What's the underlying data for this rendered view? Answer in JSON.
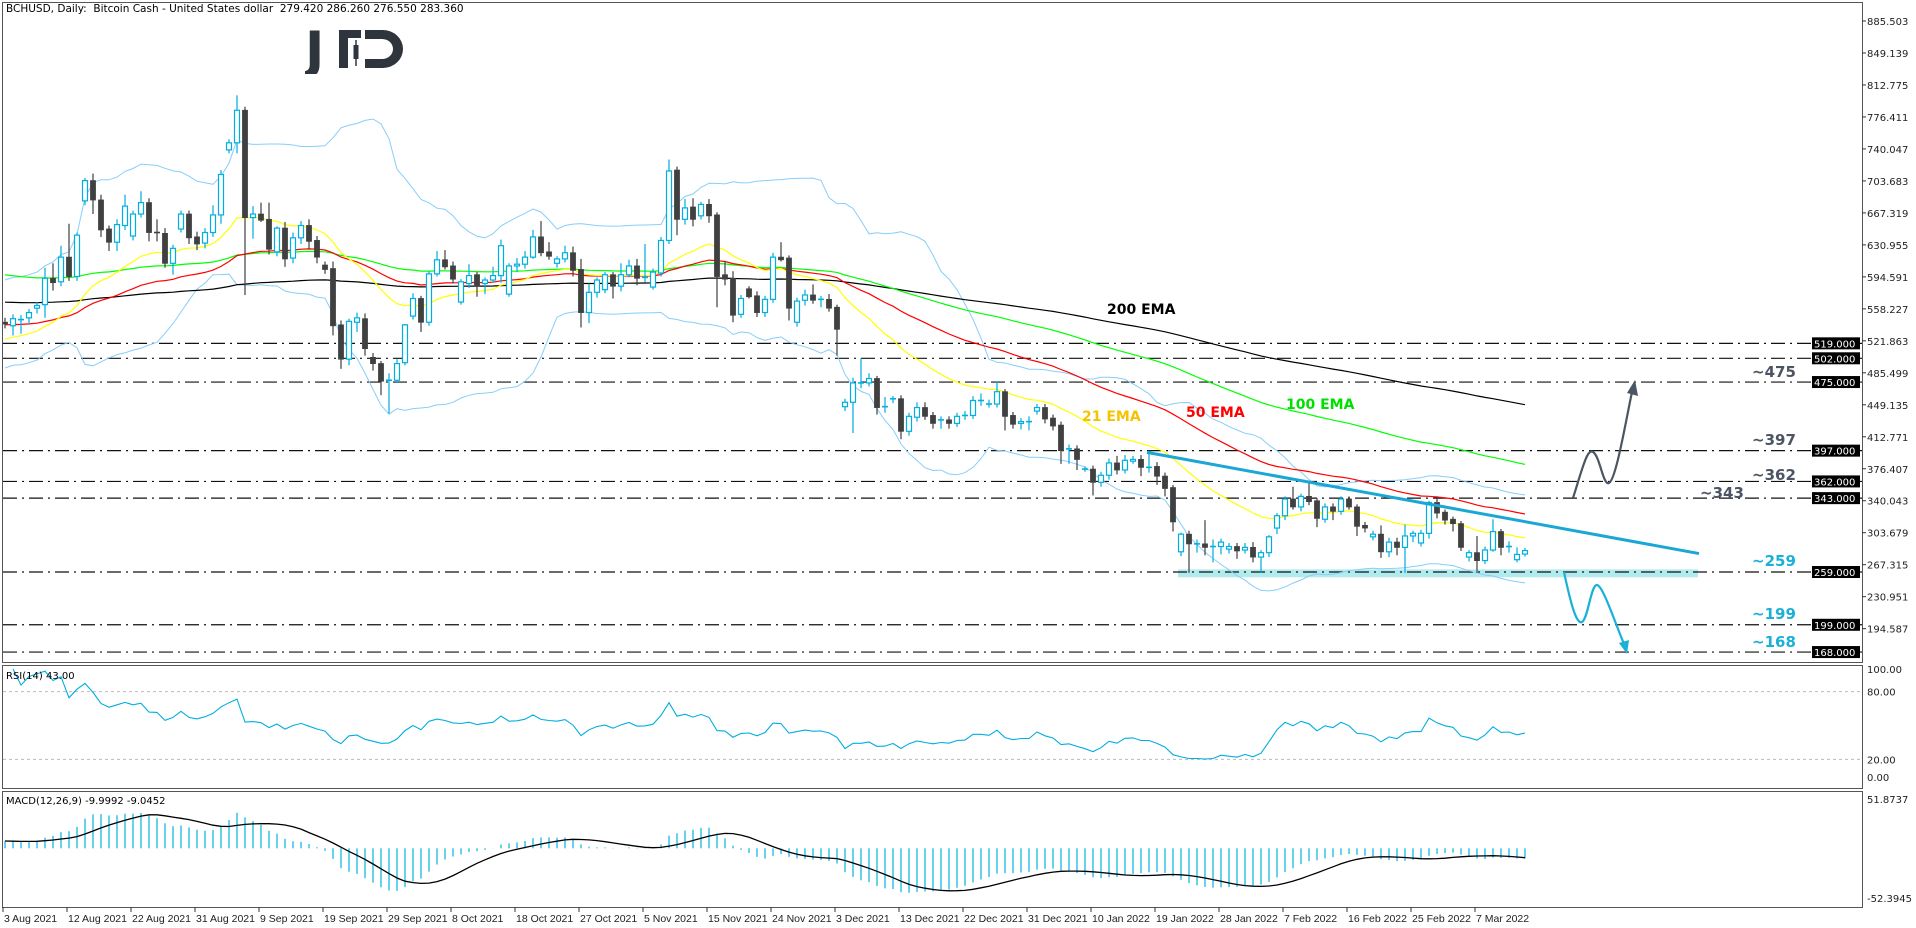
{
  "header": {
    "symbol_line": "BCHUSD, Daily:  Bitcoin Cash - United States dollar  279.420 286.260 276.550 283.360"
  },
  "logo": {
    "text": "JFD",
    "color": "#2f353d"
  },
  "annotations": {
    "ema_labels": [
      {
        "text": "200 EMA",
        "color": "#000000"
      },
      {
        "text": "21 EMA",
        "color": "#f5c400"
      },
      {
        "text": "50 EMA",
        "color": "#ff0000"
      },
      {
        "text": "100 EMA",
        "color": "#00e000"
      }
    ],
    "level_labels": [
      {
        "text": "~475",
        "color": "#4b5563"
      },
      {
        "text": "~397",
        "color": "#4b5563"
      },
      {
        "text": "~362",
        "color": "#4b5563"
      },
      {
        "text": "~343",
        "color": "#4b5563"
      },
      {
        "text": "~259",
        "color": "#1ab0d8"
      },
      {
        "text": "~199",
        "color": "#1ab0d8"
      },
      {
        "text": "~168",
        "color": "#1ab0d8"
      }
    ]
  },
  "rsi_panel": {
    "label": "RSI(14) 43.00",
    "axis": [
      "100.00",
      "80.00",
      "20.00",
      "0.00"
    ],
    "levels": [
      80,
      20
    ]
  },
  "macd_panel": {
    "label": "MACD(12,26,9) -9.9992 -9.0452",
    "axis": [
      "51.8737",
      "-52.3945"
    ]
  },
  "chart_data": {
    "type": "candlestick",
    "symbol": "BCHUSD",
    "timeframe": "Daily",
    "last_ohlc": {
      "open": 279.42,
      "high": 286.26,
      "low": 276.55,
      "close": 283.36
    },
    "price_axis": {
      "ticks": [
        "885.503",
        "849.139",
        "812.775",
        "776.411",
        "740.047",
        "703.683",
        "667.319",
        "630.955",
        "594.591",
        "558.227",
        "521.863",
        "485.499",
        "449.135",
        "412.771",
        "376.407",
        "340.043",
        "303.679",
        "267.315",
        "230.951",
        "194.587"
      ],
      "range": [
        168,
        885.503
      ]
    },
    "time_axis": {
      "labels": [
        "3 Aug 2021",
        "12 Aug 2021",
        "22 Aug 2021",
        "31 Aug 2021",
        "9 Sep 2021",
        "19 Sep 2021",
        "29 Sep 2021",
        "8 Oct 2021",
        "18 Oct 2021",
        "27 Oct 2021",
        "5 Nov 2021",
        "15 Nov 2021",
        "24 Nov 2021",
        "3 Dec 2021",
        "13 Dec 2021",
        "22 Dec 2021",
        "31 Dec 2021",
        "10 Jan 2022",
        "19 Jan 2022",
        "28 Jan 2022",
        "7 Feb 2022",
        "16 Feb 2022",
        "25 Feb 2022",
        "7 Mar 2022"
      ],
      "bars_per_label": 8
    },
    "colors": {
      "bull": "#00aee0",
      "bear": "#404040",
      "bollinger": "#87cefa",
      "ema21": "#ffff00",
      "ema50": "#ff0000",
      "ema100": "#00ff00",
      "ema200": "#000000",
      "trendline": "#1aa7d6",
      "support_zone": "#b2ebee",
      "macd_hist": "#00b4e0",
      "macd_signal": "#000000",
      "rsi": "#00aee0",
      "arrow_up": "#4b5563",
      "arrow_down": "#1ab0d8"
    },
    "indicators": {
      "ema_periods": [
        21,
        50,
        100,
        200
      ],
      "ema_initial_values": {
        "21": 522,
        "50": 540,
        "100": 598,
        "200": 566
      },
      "bollinger": {
        "period": 20,
        "deviation": 2
      },
      "rsi_period": 14,
      "macd": {
        "fast": 12,
        "slow": 26,
        "signal": 9
      }
    },
    "levels": [
      {
        "value": 519,
        "tag": "519.000"
      },
      {
        "value": 502,
        "tag": "502.000"
      },
      {
        "value": 475,
        "tag": "475.000"
      },
      {
        "value": 397,
        "tag": "397.000"
      },
      {
        "value": 362,
        "tag": "362.000"
      },
      {
        "value": 343,
        "tag": "343.000"
      },
      {
        "value": 259,
        "tag": "259.000"
      },
      {
        "value": 199,
        "tag": "199.000"
      },
      {
        "value": 168,
        "tag": "168.000"
      }
    ],
    "support_zone": {
      "from": 253,
      "to": 262
    },
    "trendline": {
      "start_price": 395,
      "end_price": 280
    },
    "candles": [
      [
        543,
        548,
        536,
        541
      ],
      [
        539,
        552,
        528,
        547
      ],
      [
        546,
        551,
        530,
        546
      ],
      [
        548,
        558,
        541,
        554
      ],
      [
        559,
        566,
        553,
        562
      ],
      [
        563,
        605,
        548,
        593
      ],
      [
        593,
        610,
        579,
        588
      ],
      [
        589,
        630,
        584,
        617
      ],
      [
        617,
        655,
        590,
        595
      ],
      [
        595,
        645,
        590,
        642
      ],
      [
        681,
        707,
        676,
        704
      ],
      [
        704,
        712,
        666,
        682
      ],
      [
        682,
        688,
        640,
        648
      ],
      [
        649,
        653,
        624,
        634
      ],
      [
        634,
        660,
        624,
        654
      ],
      [
        653,
        688,
        648,
        675
      ],
      [
        641,
        670,
        636,
        666
      ],
      [
        666,
        692,
        662,
        679
      ],
      [
        679,
        684,
        635,
        645
      ],
      [
        645,
        660,
        635,
        644
      ],
      [
        644,
        650,
        605,
        610
      ],
      [
        610,
        631,
        597,
        627
      ],
      [
        649,
        670,
        645,
        666
      ],
      [
        666,
        670,
        632,
        639
      ],
      [
        640,
        646,
        625,
        632
      ],
      [
        633,
        650,
        627,
        645
      ],
      [
        645,
        676,
        640,
        665
      ],
      [
        665,
        716,
        655,
        711
      ],
      [
        739,
        751,
        735,
        747
      ],
      [
        747,
        801,
        735,
        784
      ],
      [
        784,
        788,
        574,
        662
      ],
      [
        662,
        675,
        638,
        666
      ],
      [
        666,
        679,
        657,
        659
      ],
      [
        660,
        679,
        620,
        626
      ],
      [
        623,
        652,
        618,
        650
      ],
      [
        650,
        657,
        606,
        615
      ],
      [
        616,
        645,
        610,
        639
      ],
      [
        639,
        658,
        632,
        653
      ],
      [
        653,
        660,
        626,
        635
      ],
      [
        636,
        641,
        610,
        617
      ],
      [
        608,
        612,
        598,
        603
      ],
      [
        604,
        612,
        528,
        539
      ],
      [
        540,
        545,
        490,
        501
      ],
      [
        501,
        547,
        494,
        544
      ],
      [
        543,
        554,
        532,
        548
      ],
      [
        547,
        553,
        505,
        513
      ],
      [
        503,
        508,
        488,
        496
      ],
      [
        496,
        499,
        460,
        476
      ],
      [
        477,
        485,
        439,
        477
      ],
      [
        477,
        501,
        474,
        496
      ],
      [
        497,
        541,
        494,
        540
      ],
      [
        550,
        576,
        546,
        570
      ],
      [
        570,
        573,
        532,
        543
      ],
      [
        543,
        601,
        539,
        598
      ],
      [
        598,
        624,
        595,
        614
      ],
      [
        614,
        625,
        603,
        606
      ],
      [
        607,
        612,
        587,
        592
      ],
      [
        566,
        592,
        563,
        589
      ],
      [
        587,
        609,
        582,
        596
      ],
      [
        597,
        600,
        572,
        584
      ],
      [
        587,
        594,
        575,
        591
      ],
      [
        591,
        606,
        588,
        596
      ],
      [
        596,
        637,
        588,
        630
      ],
      [
        575,
        610,
        572,
        607
      ],
      [
        607,
        616,
        600,
        609
      ],
      [
        609,
        624,
        604,
        617
      ],
      [
        617,
        648,
        615,
        640
      ],
      [
        640,
        658,
        618,
        622
      ],
      [
        623,
        634,
        614,
        618
      ],
      [
        610,
        618,
        605,
        615
      ],
      [
        615,
        630,
        611,
        622
      ],
      [
        622,
        629,
        595,
        602
      ],
      [
        603,
        615,
        537,
        554
      ],
      [
        554,
        587,
        542,
        577
      ],
      [
        577,
        594,
        571,
        591
      ],
      [
        580,
        600,
        576,
        597
      ],
      [
        597,
        600,
        570,
        584
      ],
      [
        584,
        610,
        578,
        597
      ],
      [
        597,
        614,
        594,
        607
      ],
      [
        607,
        615,
        585,
        593
      ],
      [
        594,
        632,
        588,
        594
      ],
      [
        583,
        604,
        580,
        600
      ],
      [
        599,
        640,
        595,
        636
      ],
      [
        636,
        728,
        632,
        715
      ],
      [
        716,
        720,
        642,
        660
      ],
      [
        660,
        683,
        654,
        673
      ],
      [
        674,
        684,
        652,
        660
      ],
      [
        664,
        680,
        660,
        677
      ],
      [
        677,
        683,
        656,
        664
      ],
      [
        665,
        668,
        560,
        595
      ],
      [
        597,
        612,
        585,
        592
      ],
      [
        593,
        601,
        543,
        551
      ],
      [
        552,
        574,
        548,
        570
      ],
      [
        581,
        584,
        570,
        572
      ],
      [
        573,
        578,
        549,
        554
      ],
      [
        554,
        573,
        549,
        569
      ],
      [
        569,
        622,
        565,
        617
      ],
      [
        617,
        634,
        612,
        614
      ],
      [
        616,
        619,
        545,
        559
      ],
      [
        543,
        571,
        538,
        567
      ],
      [
        568,
        580,
        562,
        574
      ],
      [
        574,
        586,
        564,
        568
      ],
      [
        569,
        573,
        560,
        569
      ],
      [
        569,
        575,
        555,
        559
      ],
      [
        560,
        563,
        505,
        535
      ],
      [
        447,
        456,
        442,
        452
      ],
      [
        452,
        480,
        417,
        474
      ],
      [
        474,
        502,
        468,
        474
      ],
      [
        474,
        485,
        470,
        479
      ],
      [
        479,
        482,
        438,
        446
      ],
      [
        447,
        458,
        440,
        447
      ],
      [
        455,
        459,
        451,
        456
      ],
      [
        456,
        460,
        410,
        419
      ],
      [
        419,
        440,
        414,
        436
      ],
      [
        435,
        452,
        430,
        446
      ],
      [
        446,
        452,
        432,
        436
      ],
      [
        437,
        441,
        422,
        428
      ],
      [
        432,
        436,
        422,
        432
      ],
      [
        432,
        436,
        422,
        428
      ],
      [
        428,
        440,
        424,
        436
      ],
      [
        436,
        442,
        432,
        437
      ],
      [
        437,
        459,
        433,
        454
      ],
      [
        454,
        462,
        448,
        454
      ],
      [
        450,
        455,
        446,
        450
      ],
      [
        450,
        476,
        446,
        464
      ],
      [
        464,
        467,
        420,
        436
      ],
      [
        437,
        441,
        422,
        427
      ],
      [
        428,
        434,
        421,
        430
      ],
      [
        430,
        436,
        420,
        430
      ],
      [
        442,
        450,
        438,
        446
      ],
      [
        446,
        450,
        428,
        433
      ],
      [
        434,
        438,
        420,
        425
      ],
      [
        426,
        430,
        382,
        397
      ],
      [
        399,
        404,
        382,
        399
      ],
      [
        399,
        403,
        375,
        387
      ],
      [
        376,
        379,
        373,
        376
      ],
      [
        376,
        380,
        346,
        361
      ],
      [
        361,
        373,
        356,
        369
      ],
      [
        369,
        388,
        364,
        383
      ],
      [
        383,
        391,
        370,
        375
      ],
      [
        375,
        392,
        371,
        386
      ],
      [
        385,
        391,
        382,
        387
      ],
      [
        387,
        392,
        368,
        378
      ],
      [
        378,
        397,
        372,
        378
      ],
      [
        379,
        384,
        358,
        368
      ],
      [
        368,
        372,
        345,
        354
      ],
      [
        355,
        358,
        305,
        316
      ],
      [
        282,
        304,
        277,
        302
      ],
      [
        302,
        306,
        258,
        291
      ],
      [
        291,
        296,
        281,
        291
      ],
      [
        291,
        318,
        278,
        287
      ],
      [
        288,
        296,
        270,
        288
      ],
      [
        288,
        297,
        279,
        293
      ],
      [
        285,
        292,
        280,
        288
      ],
      [
        288,
        292,
        274,
        283
      ],
      [
        284,
        292,
        280,
        287
      ],
      [
        287,
        293,
        270,
        276
      ],
      [
        276,
        284,
        258,
        281
      ],
      [
        281,
        301,
        276,
        299
      ],
      [
        309,
        326,
        302,
        323
      ],
      [
        323,
        345,
        318,
        342
      ],
      [
        342,
        356,
        330,
        333
      ],
      [
        333,
        348,
        328,
        345
      ],
      [
        345,
        363,
        335,
        339
      ],
      [
        340,
        343,
        310,
        320
      ],
      [
        319,
        337,
        315,
        333
      ],
      [
        333,
        337,
        318,
        328
      ],
      [
        328,
        345,
        324,
        342
      ],
      [
        342,
        345,
        330,
        333
      ],
      [
        333,
        336,
        300,
        311
      ],
      [
        312,
        316,
        304,
        309
      ],
      [
        299,
        306,
        295,
        302
      ],
      [
        302,
        312,
        275,
        282
      ],
      [
        282,
        298,
        276,
        293
      ],
      [
        293,
        298,
        278,
        287
      ],
      [
        287,
        313,
        258,
        300
      ],
      [
        300,
        306,
        293,
        303
      ],
      [
        292,
        307,
        288,
        303
      ],
      [
        303,
        340,
        297,
        338
      ],
      [
        338,
        345,
        320,
        326
      ],
      [
        327,
        330,
        313,
        318
      ],
      [
        319,
        322,
        305,
        314
      ],
      [
        314,
        317,
        283,
        287
      ],
      [
        276,
        284,
        271,
        281
      ],
      [
        281,
        300,
        258,
        272
      ],
      [
        272,
        288,
        268,
        284
      ],
      [
        284,
        319,
        282,
        305
      ],
      [
        305,
        308,
        278,
        287
      ],
      [
        288,
        294,
        281,
        288
      ],
      [
        273,
        287,
        270,
        279
      ],
      [
        279.42,
        286.26,
        276.55,
        283.36
      ]
    ]
  }
}
